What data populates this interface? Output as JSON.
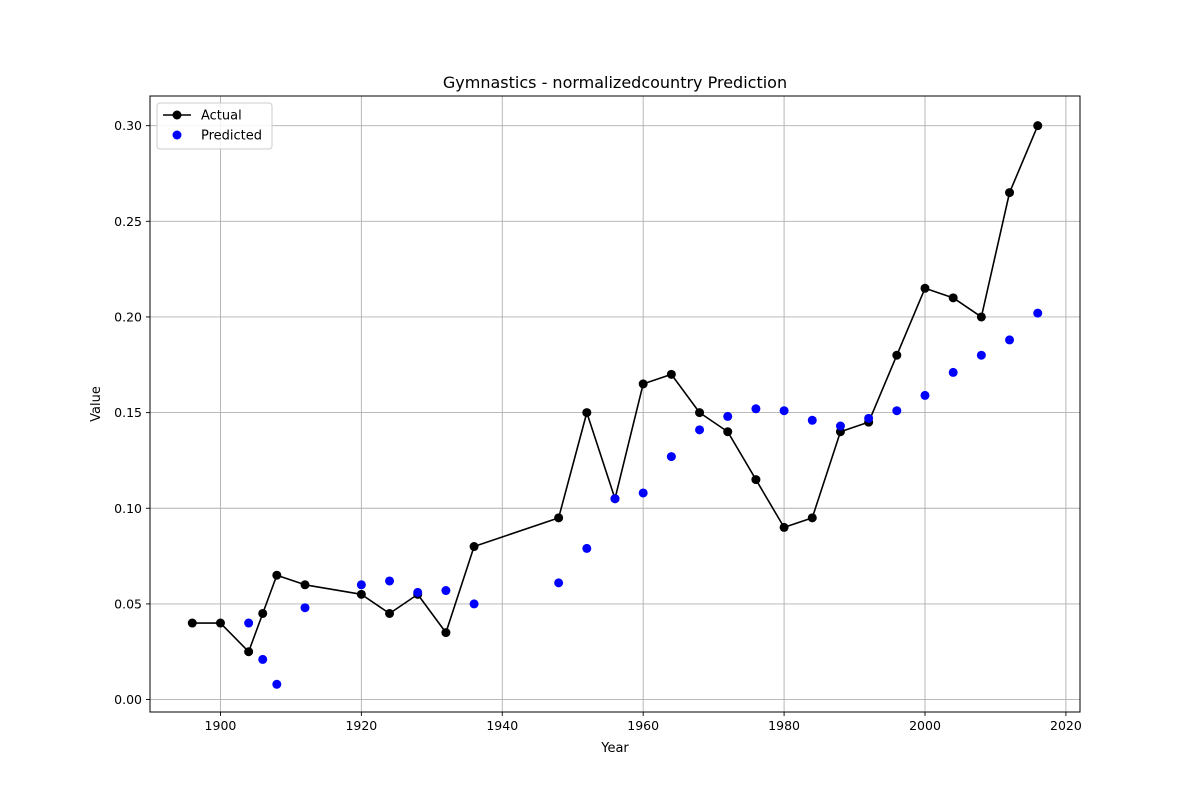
{
  "chart_data": {
    "type": "line",
    "title": "Gymnastics - normalizedcountry Prediction",
    "xlabel": "Year",
    "ylabel": "Value",
    "xlim": [
      1890,
      2022
    ],
    "ylim": [
      -0.0065,
      0.3155
    ],
    "xticks": [
      1900,
      1920,
      1940,
      1960,
      1980,
      2000,
      2020
    ],
    "yticks": [
      0.0,
      0.05,
      0.1,
      0.15,
      0.2,
      0.25,
      0.3
    ],
    "xtick_labels": [
      "1900",
      "1920",
      "1940",
      "1960",
      "1980",
      "2000",
      "2020"
    ],
    "ytick_labels": [
      "0.00",
      "0.05",
      "0.10",
      "0.15",
      "0.20",
      "0.25",
      "0.30"
    ],
    "grid": true,
    "legend_position": "top-left",
    "series": [
      {
        "name": "Actual",
        "style": "line-marker",
        "color": "#000000",
        "points": [
          [
            1896,
            0.04
          ],
          [
            1900,
            0.04
          ],
          [
            1904,
            0.025
          ],
          [
            1906,
            0.045
          ],
          [
            1908,
            0.065
          ],
          [
            1912,
            0.06
          ],
          [
            1920,
            0.055
          ],
          [
            1924,
            0.045
          ],
          [
            1928,
            0.055
          ],
          [
            1932,
            0.035
          ],
          [
            1936,
            0.08
          ],
          [
            1948,
            0.095
          ],
          [
            1952,
            0.15
          ],
          [
            1956,
            0.105
          ],
          [
            1960,
            0.165
          ],
          [
            1964,
            0.17
          ],
          [
            1968,
            0.15
          ],
          [
            1972,
            0.14
          ],
          [
            1976,
            0.115
          ],
          [
            1980,
            0.09
          ],
          [
            1984,
            0.095
          ],
          [
            1988,
            0.14
          ],
          [
            1992,
            0.145
          ],
          [
            1996,
            0.18
          ],
          [
            2000,
            0.215
          ],
          [
            2004,
            0.21
          ],
          [
            2008,
            0.2
          ],
          [
            2012,
            0.265
          ],
          [
            2016,
            0.3
          ]
        ]
      },
      {
        "name": "Predicted",
        "style": "scatter",
        "color": "#0000ff",
        "points": [
          [
            1904,
            0.04
          ],
          [
            1906,
            0.021
          ],
          [
            1908,
            0.008
          ],
          [
            1912,
            0.048
          ],
          [
            1920,
            0.06
          ],
          [
            1924,
            0.062
          ],
          [
            1928,
            0.056
          ],
          [
            1932,
            0.057
          ],
          [
            1936,
            0.05
          ],
          [
            1948,
            0.061
          ],
          [
            1952,
            0.079
          ],
          [
            1956,
            0.105
          ],
          [
            1960,
            0.108
          ],
          [
            1964,
            0.127
          ],
          [
            1968,
            0.141
          ],
          [
            1972,
            0.148
          ],
          [
            1976,
            0.152
          ],
          [
            1980,
            0.151
          ],
          [
            1984,
            0.146
          ],
          [
            1988,
            0.143
          ],
          [
            1992,
            0.147
          ],
          [
            1996,
            0.151
          ],
          [
            2000,
            0.159
          ],
          [
            2004,
            0.171
          ],
          [
            2008,
            0.18
          ],
          [
            2012,
            0.188
          ],
          [
            2016,
            0.202
          ]
        ]
      }
    ]
  }
}
